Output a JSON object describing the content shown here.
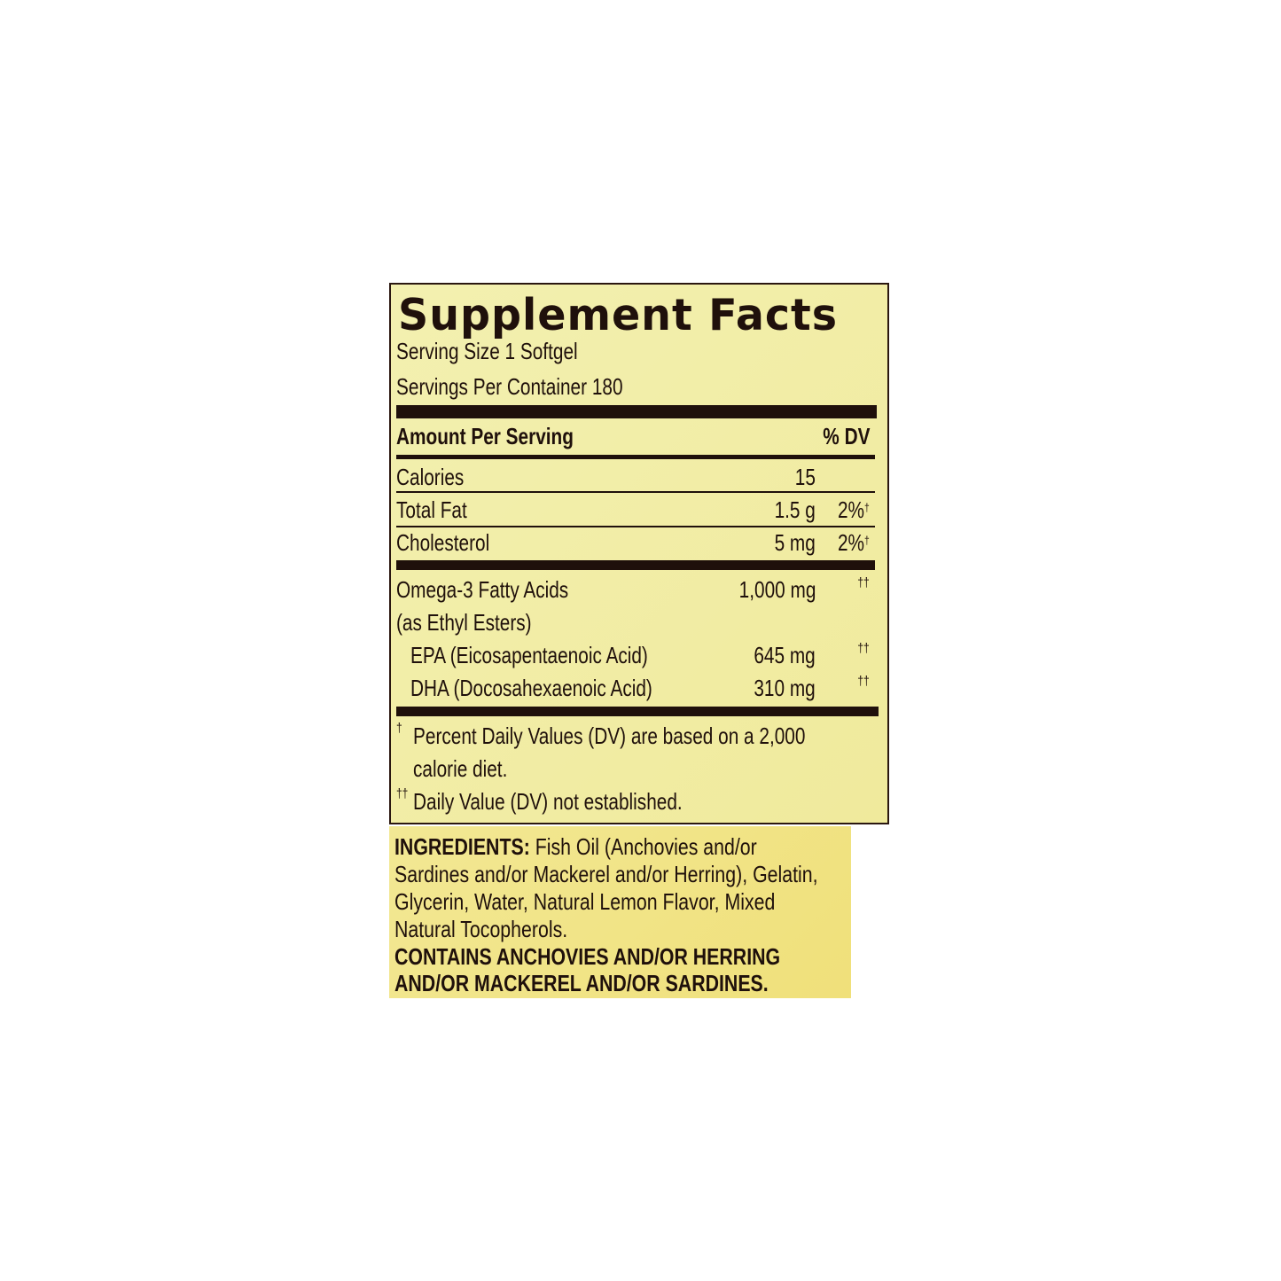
{
  "label": {
    "title": "Supplement Facts",
    "serving_size": "Serving Size 1 Softgel",
    "servings_per_container": "Servings Per Container 180",
    "amount_header": "Amount Per Serving",
    "dv_header": "% DV",
    "rows": [
      {
        "name": "Calories",
        "amount": "15",
        "dv": ""
      },
      {
        "name": "Total Fat",
        "amount": "1.5 g",
        "dv": "2%",
        "dv_mark": "†"
      },
      {
        "name": "Cholesterol",
        "amount": "5 mg",
        "dv": "2%",
        "dv_mark": "†"
      },
      {
        "name": "Omega-3 Fatty Acids",
        "amount": "1,000 mg",
        "dv_mark": "††"
      },
      {
        "name": "(as Ethyl Esters)"
      },
      {
        "name": "EPA (Eicosapentaenoic Acid)",
        "amount": "645 mg",
        "dv_mark": "††"
      },
      {
        "name": "DHA (Docosahexaenoic Acid)",
        "amount": "310 mg",
        "dv_mark": "††"
      }
    ],
    "footnotes": [
      {
        "mark": "†",
        "line1": "Percent Daily Values (DV) are based on a 2,000",
        "line2": "calorie diet."
      },
      {
        "mark": "††",
        "line1": "Daily Value (DV) not established."
      }
    ]
  },
  "ingredients": {
    "heading": "INGREDIENTS:",
    "lines": [
      " Fish Oil (Anchovies and/or",
      "Sardines and/or Mackerel and/or Herring), Gelatin,",
      "Glycerin, Water, Natural Lemon Flavor, Mixed",
      "Natural Tocopherols."
    ],
    "allergen_lines": [
      "CONTAINS ANCHOVIES AND/OR HERRING",
      "AND/OR MACKEREL AND/OR SARDINES."
    ]
  },
  "colors": {
    "panel": "#f2eea6",
    "ingredients_panel": "#f1e586",
    "text": "#1f100b"
  }
}
